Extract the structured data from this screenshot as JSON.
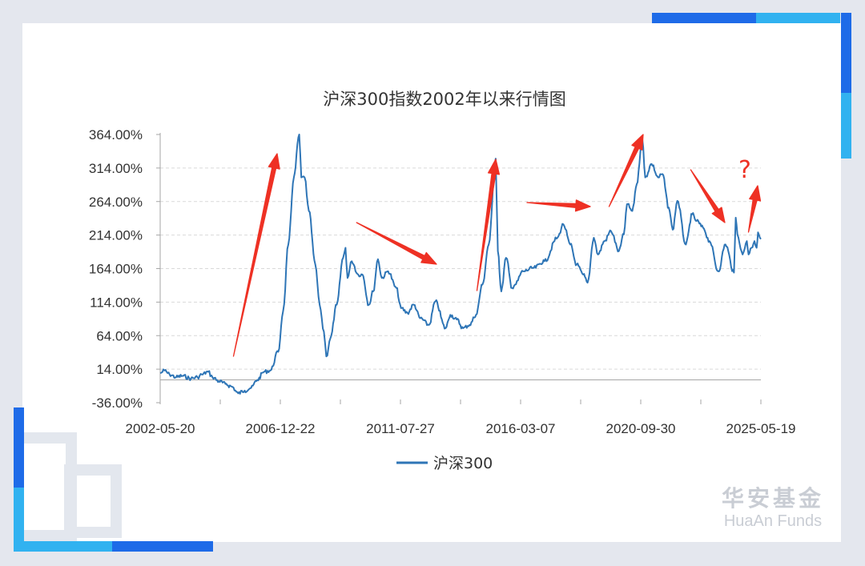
{
  "chart_data": {
    "type": "line",
    "title": "沪深300指数2002年以来行情图",
    "xlabel": "",
    "ylabel": "",
    "x_ticks": [
      "2002-05-20",
      "2006-12-22",
      "2011-07-27",
      "2016-03-07",
      "2020-09-30",
      "2025-05-19"
    ],
    "y_ticks": [
      "364.00%",
      "314.00%",
      "264.00%",
      "214.00%",
      "164.00%",
      "114.00%",
      "64.00%",
      "14.00%",
      "-36.00%"
    ],
    "ylim": [
      -36,
      364
    ],
    "xlim": [
      "2002-05-20",
      "2025-09-30"
    ],
    "grid": true,
    "legend": "bottom",
    "series": [
      {
        "name": "沪深300",
        "color": "#2e75b6",
        "points": [
          [
            "2002-05-20",
            8
          ],
          [
            "2002-07-20",
            12
          ],
          [
            "2002-10-01",
            6
          ],
          [
            "2003-01-01",
            2
          ],
          [
            "2003-04-01",
            4
          ],
          [
            "2003-08-01",
            0
          ],
          [
            "2003-11-01",
            2
          ],
          [
            "2004-01-01",
            6
          ],
          [
            "2004-04-01",
            10
          ],
          [
            "2004-06-01",
            2
          ],
          [
            "2004-09-01",
            -4
          ],
          [
            "2004-12-01",
            -8
          ],
          [
            "2005-03-01",
            -12
          ],
          [
            "2005-06-01",
            -22
          ],
          [
            "2005-09-01",
            -18
          ],
          [
            "2005-12-01",
            -14
          ],
          [
            "2006-03-01",
            -2
          ],
          [
            "2006-06-01",
            10
          ],
          [
            "2006-09-01",
            12
          ],
          [
            "2006-12-22",
            40
          ],
          [
            "2007-03-01",
            100
          ],
          [
            "2007-05-15",
            200
          ],
          [
            "2007-08-01",
            300
          ],
          [
            "2007-10-16",
            364
          ],
          [
            "2007-11-15",
            300
          ],
          [
            "2008-01-01",
            300
          ],
          [
            "2008-03-01",
            250
          ],
          [
            "2008-06-01",
            170
          ],
          [
            "2008-08-01",
            110
          ],
          [
            "2008-10-01",
            70
          ],
          [
            "2008-11-04",
            33
          ],
          [
            "2009-01-01",
            60
          ],
          [
            "2009-04-01",
            110
          ],
          [
            "2009-07-01",
            180
          ],
          [
            "2009-08-04",
            195
          ],
          [
            "2009-09-01",
            150
          ],
          [
            "2009-11-01",
            175
          ],
          [
            "2010-02-01",
            155
          ],
          [
            "2010-04-01",
            155
          ],
          [
            "2010-07-01",
            110
          ],
          [
            "2010-09-01",
            130
          ],
          [
            "2010-11-08",
            178
          ],
          [
            "2011-01-01",
            150
          ],
          [
            "2011-04-01",
            160
          ],
          [
            "2011-07-27",
            135
          ],
          [
            "2011-10-01",
            105
          ],
          [
            "2012-01-01",
            98
          ],
          [
            "2012-04-01",
            110
          ],
          [
            "2012-07-01",
            90
          ],
          [
            "2012-11-01",
            80
          ],
          [
            "2013-02-01",
            115
          ],
          [
            "2013-06-25",
            75
          ],
          [
            "2013-09-01",
            95
          ],
          [
            "2013-12-01",
            88
          ],
          [
            "2014-03-01",
            75
          ],
          [
            "2014-06-01",
            80
          ],
          [
            "2014-09-01",
            95
          ],
          [
            "2014-12-01",
            140
          ],
          [
            "2015-03-01",
            200
          ],
          [
            "2015-06-08",
            328
          ],
          [
            "2015-07-08",
            190
          ],
          [
            "2015-08-26",
            130
          ],
          [
            "2015-11-01",
            180
          ],
          [
            "2016-01-28",
            135
          ],
          [
            "2016-03-07",
            140
          ],
          [
            "2016-07-01",
            160
          ],
          [
            "2016-12-01",
            165
          ],
          [
            "2017-05-01",
            175
          ],
          [
            "2017-11-01",
            210
          ],
          [
            "2018-01-24",
            230
          ],
          [
            "2018-05-01",
            200
          ],
          [
            "2018-08-01",
            170
          ],
          [
            "2018-11-01",
            155
          ],
          [
            "2019-01-03",
            143
          ],
          [
            "2019-04-01",
            210
          ],
          [
            "2019-06-01",
            185
          ],
          [
            "2019-09-01",
            205
          ],
          [
            "2019-12-01",
            220
          ],
          [
            "2020-03-23",
            190
          ],
          [
            "2020-06-01",
            215
          ],
          [
            "2020-07-15",
            260
          ],
          [
            "2020-09-30",
            250
          ],
          [
            "2020-12-01",
            290
          ],
          [
            "2021-02-18",
            358
          ],
          [
            "2021-04-01",
            300
          ],
          [
            "2021-07-01",
            320
          ],
          [
            "2021-10-01",
            300
          ],
          [
            "2021-12-01",
            305
          ],
          [
            "2022-03-01",
            255
          ],
          [
            "2022-04-26",
            222
          ],
          [
            "2022-07-01",
            265
          ],
          [
            "2022-10-31",
            200
          ],
          [
            "2023-01-28",
            245
          ],
          [
            "2023-04-01",
            235
          ],
          [
            "2023-07-01",
            225
          ],
          [
            "2023-10-01",
            205
          ],
          [
            "2024-02-02",
            160
          ],
          [
            "2024-05-15",
            200
          ],
          [
            "2024-09-13",
            158
          ],
          [
            "2024-10-08",
            240
          ],
          [
            "2024-11-01",
            215
          ],
          [
            "2025-01-13",
            185
          ],
          [
            "2025-03-15",
            205
          ],
          [
            "2025-04-08",
            185
          ],
          [
            "2025-05-19",
            195
          ],
          [
            "2025-07-01",
            205
          ],
          [
            "2025-08-01",
            195
          ],
          [
            "2025-08-20",
            218
          ],
          [
            "2025-09-30",
            208
          ]
        ]
      }
    ],
    "annotations": [
      "?"
    ]
  },
  "brand": {
    "name_cn": "华安基金",
    "name_en": "HuaAn Funds"
  },
  "colors": {
    "line": "#2e75b6",
    "arrow": "#ee3124",
    "accent_blue": "#1e6be8",
    "accent_cyan": "#31b2f0"
  }
}
